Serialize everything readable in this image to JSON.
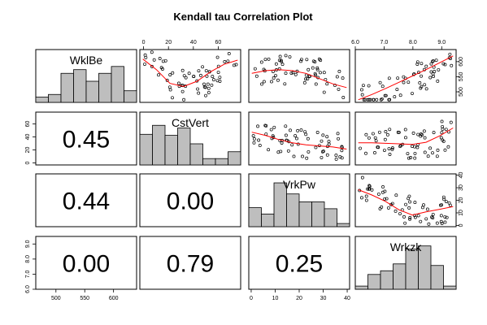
{
  "chart_data": {
    "type": "scatter-matrix",
    "title": "Kendall tau Correlation Plot",
    "variables": [
      {
        "name": "WklBe",
        "range": [
          465,
          640
        ],
        "ticks": [
          500,
          550,
          600
        ]
      },
      {
        "name": "CstVert",
        "range": [
          -3,
          78
        ],
        "ticks": [
          0,
          20,
          40,
          60
        ]
      },
      {
        "name": "VrkPw",
        "range": [
          -1,
          41
        ],
        "ticks": [
          0,
          10,
          20,
          30,
          40
        ]
      },
      {
        "name": "Wrkzk",
        "range": [
          6.0,
          9.5
        ],
        "ticks": [
          6.0,
          7.0,
          8.0,
          9.0
        ]
      }
    ],
    "correlations": [
      {
        "row": 1,
        "col": 0,
        "value": "0.45"
      },
      {
        "row": 2,
        "col": 0,
        "value": "0.44"
      },
      {
        "row": 2,
        "col": 1,
        "value": "0.00"
      },
      {
        "row": 3,
        "col": 0,
        "value": "0.00"
      },
      {
        "row": 3,
        "col": 1,
        "value": "0.79"
      },
      {
        "row": 3,
        "col": 2,
        "value": "0.25"
      }
    ],
    "histograms": [
      [
        0.1,
        0.15,
        0.55,
        0.62,
        0.4,
        0.55,
        0.68,
        0.22
      ],
      [
        0.58,
        0.75,
        0.56,
        0.7,
        0.4,
        0.12,
        0.12,
        0.25
      ],
      [
        0.36,
        0.24,
        0.83,
        0.62,
        0.47,
        0.47,
        0.34,
        0.06
      ],
      [
        0.06,
        0.28,
        0.35,
        0.48,
        0.76,
        0.82,
        0.45,
        0.06
      ]
    ],
    "smoother_color": "#ff0000",
    "bar_fill": "#bebebe"
  }
}
